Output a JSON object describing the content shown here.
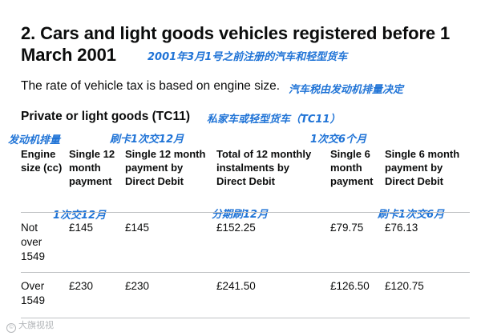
{
  "heading": {
    "line1": "2. Cars and light goods vehicles registered before 1",
    "line2": "March 2001"
  },
  "annotations": {
    "title": "2001年3月1号之前注册的汽车和轻型货车",
    "lead": "汽车税由发动机排量决定",
    "subtitle": "私家车或轻型货车（TC11）",
    "engine_size": "发动机排量",
    "direct_debit_12": "刷卡1次交12月",
    "single_6": "1次交6个月",
    "single_12": "1次交12月",
    "instalments_12": "分期刷12月",
    "direct_debit_6": "刷卡1次交6月"
  },
  "lead_text": "The rate of vehicle tax is based on engine size.",
  "subtitle_text": "Private or light goods (TC11)",
  "table": {
    "headers": [
      "Engine size (cc)",
      "Single 12 month payment",
      "Single 12 month payment by Direct Debit",
      "Total of 12 monthly instalments by Direct Debit",
      "Single 6 month payment",
      "Single 6 month payment by Direct Debit"
    ],
    "rows": [
      {
        "label": "Not over 1549",
        "single_12": "£145",
        "single_12_dd": "£145",
        "total_12_instalments": "£152.25",
        "single_6": "£79.75",
        "single_6_dd": "£76.13"
      },
      {
        "label": "Over 1549",
        "single_12": "£230",
        "single_12_dd": "£230",
        "total_12_instalments": "£241.50",
        "single_6": "£126.50",
        "single_6_dd": "£120.75"
      }
    ]
  },
  "watermark": {
    "icon": "©",
    "text": "大旗视视"
  },
  "colors": {
    "annotation": "#1f73d6",
    "text": "#0b0c0c",
    "rule": "#bfc1c3"
  }
}
